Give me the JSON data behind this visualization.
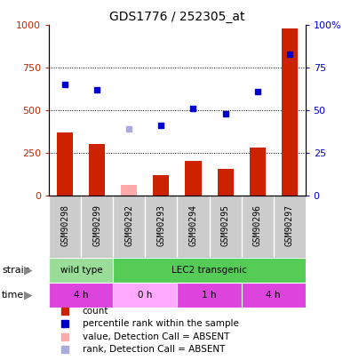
{
  "title": "GDS1776 / 252305_at",
  "samples": [
    "GSM90298",
    "GSM90299",
    "GSM90292",
    "GSM90293",
    "GSM90294",
    "GSM90295",
    "GSM90296",
    "GSM90297"
  ],
  "bar_values": [
    370,
    300,
    null,
    120,
    200,
    155,
    280,
    980
  ],
  "bar_absent_values": [
    null,
    null,
    60,
    null,
    null,
    null,
    null,
    null
  ],
  "rank_values": [
    65,
    62,
    null,
    41,
    51,
    48,
    61,
    83
  ],
  "rank_absent_values": [
    null,
    null,
    39,
    null,
    null,
    null,
    null,
    null
  ],
  "bar_color": "#cc2200",
  "bar_absent_color": "#ffaaaa",
  "rank_color": "#0000cc",
  "rank_absent_color": "#aaaadd",
  "ylim_left": [
    0,
    1000
  ],
  "ylim_right": [
    0,
    100
  ],
  "yticks_left": [
    0,
    250,
    500,
    750,
    1000
  ],
  "ytick_labels_left": [
    "0",
    "250",
    "500",
    "750",
    "1000"
  ],
  "yticks_right": [
    0,
    25,
    50,
    75,
    100
  ],
  "ytick_labels_right": [
    "0",
    "25",
    "50",
    "75",
    "100%"
  ],
  "grid_lines": [
    250,
    500,
    750
  ],
  "sample_bg_color": "#cccccc",
  "strain_labels": [
    {
      "label": "wild type",
      "span": [
        0,
        2
      ],
      "color": "#99dd99"
    },
    {
      "label": "LEC2 transgenic",
      "span": [
        2,
        8
      ],
      "color": "#55cc55"
    }
  ],
  "time_labels": [
    {
      "label": "4 h",
      "span": [
        0,
        2
      ],
      "color": "#dd44dd"
    },
    {
      "label": "0 h",
      "span": [
        2,
        4
      ],
      "color": "#ffaaff"
    },
    {
      "label": "1 h",
      "span": [
        4,
        6
      ],
      "color": "#dd44dd"
    },
    {
      "label": "4 h",
      "span": [
        6,
        8
      ],
      "color": "#dd44dd"
    }
  ],
  "legend_items": [
    {
      "label": "count",
      "color": "#cc2200"
    },
    {
      "label": "percentile rank within the sample",
      "color": "#0000cc"
    },
    {
      "label": "value, Detection Call = ABSENT",
      "color": "#ffaaaa"
    },
    {
      "label": "rank, Detection Call = ABSENT",
      "color": "#aaaadd"
    }
  ],
  "bg_color": "#ffffff",
  "left_tick_color": "#cc2200",
  "right_tick_color": "#0000cc",
  "bar_width": 0.5
}
